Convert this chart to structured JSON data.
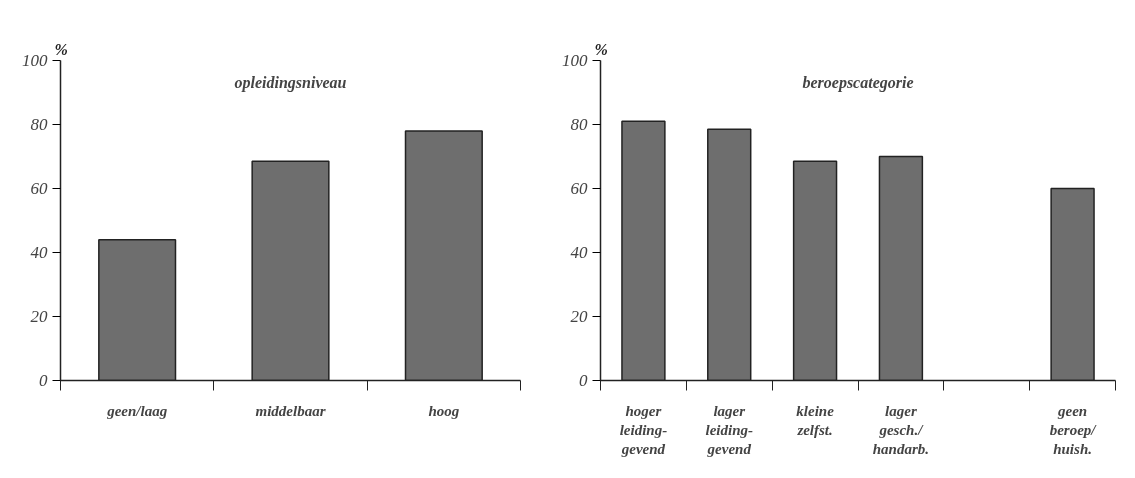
{
  "chart_data": [
    {
      "type": "bar",
      "title": "opleidingsniveau",
      "ylabel": "%",
      "categories": [
        "geen/laag",
        "middelbaar",
        "hoog"
      ],
      "values": [
        44,
        68.5,
        78
      ],
      "color": "#6e6e6e",
      "ylim": [
        0,
        100
      ],
      "yticks": [
        0,
        20,
        40,
        60,
        80,
        100
      ]
    },
    {
      "type": "bar",
      "title": "beroepscategorie",
      "ylabel": "%",
      "categories": [
        "hoger\nleiding-\ngevend",
        "lager\nleiding-\ngevend",
        "kleine\nzelfst.",
        "lager\ngesch./\nhandarb.",
        null,
        "geen\nberoep/\nhuish."
      ],
      "values": [
        81,
        78.5,
        68.5,
        70,
        null,
        60
      ],
      "color": "#6e6e6e",
      "ylim": [
        0,
        100
      ],
      "yticks": [
        0,
        20,
        40,
        60,
        80,
        100
      ]
    }
  ]
}
